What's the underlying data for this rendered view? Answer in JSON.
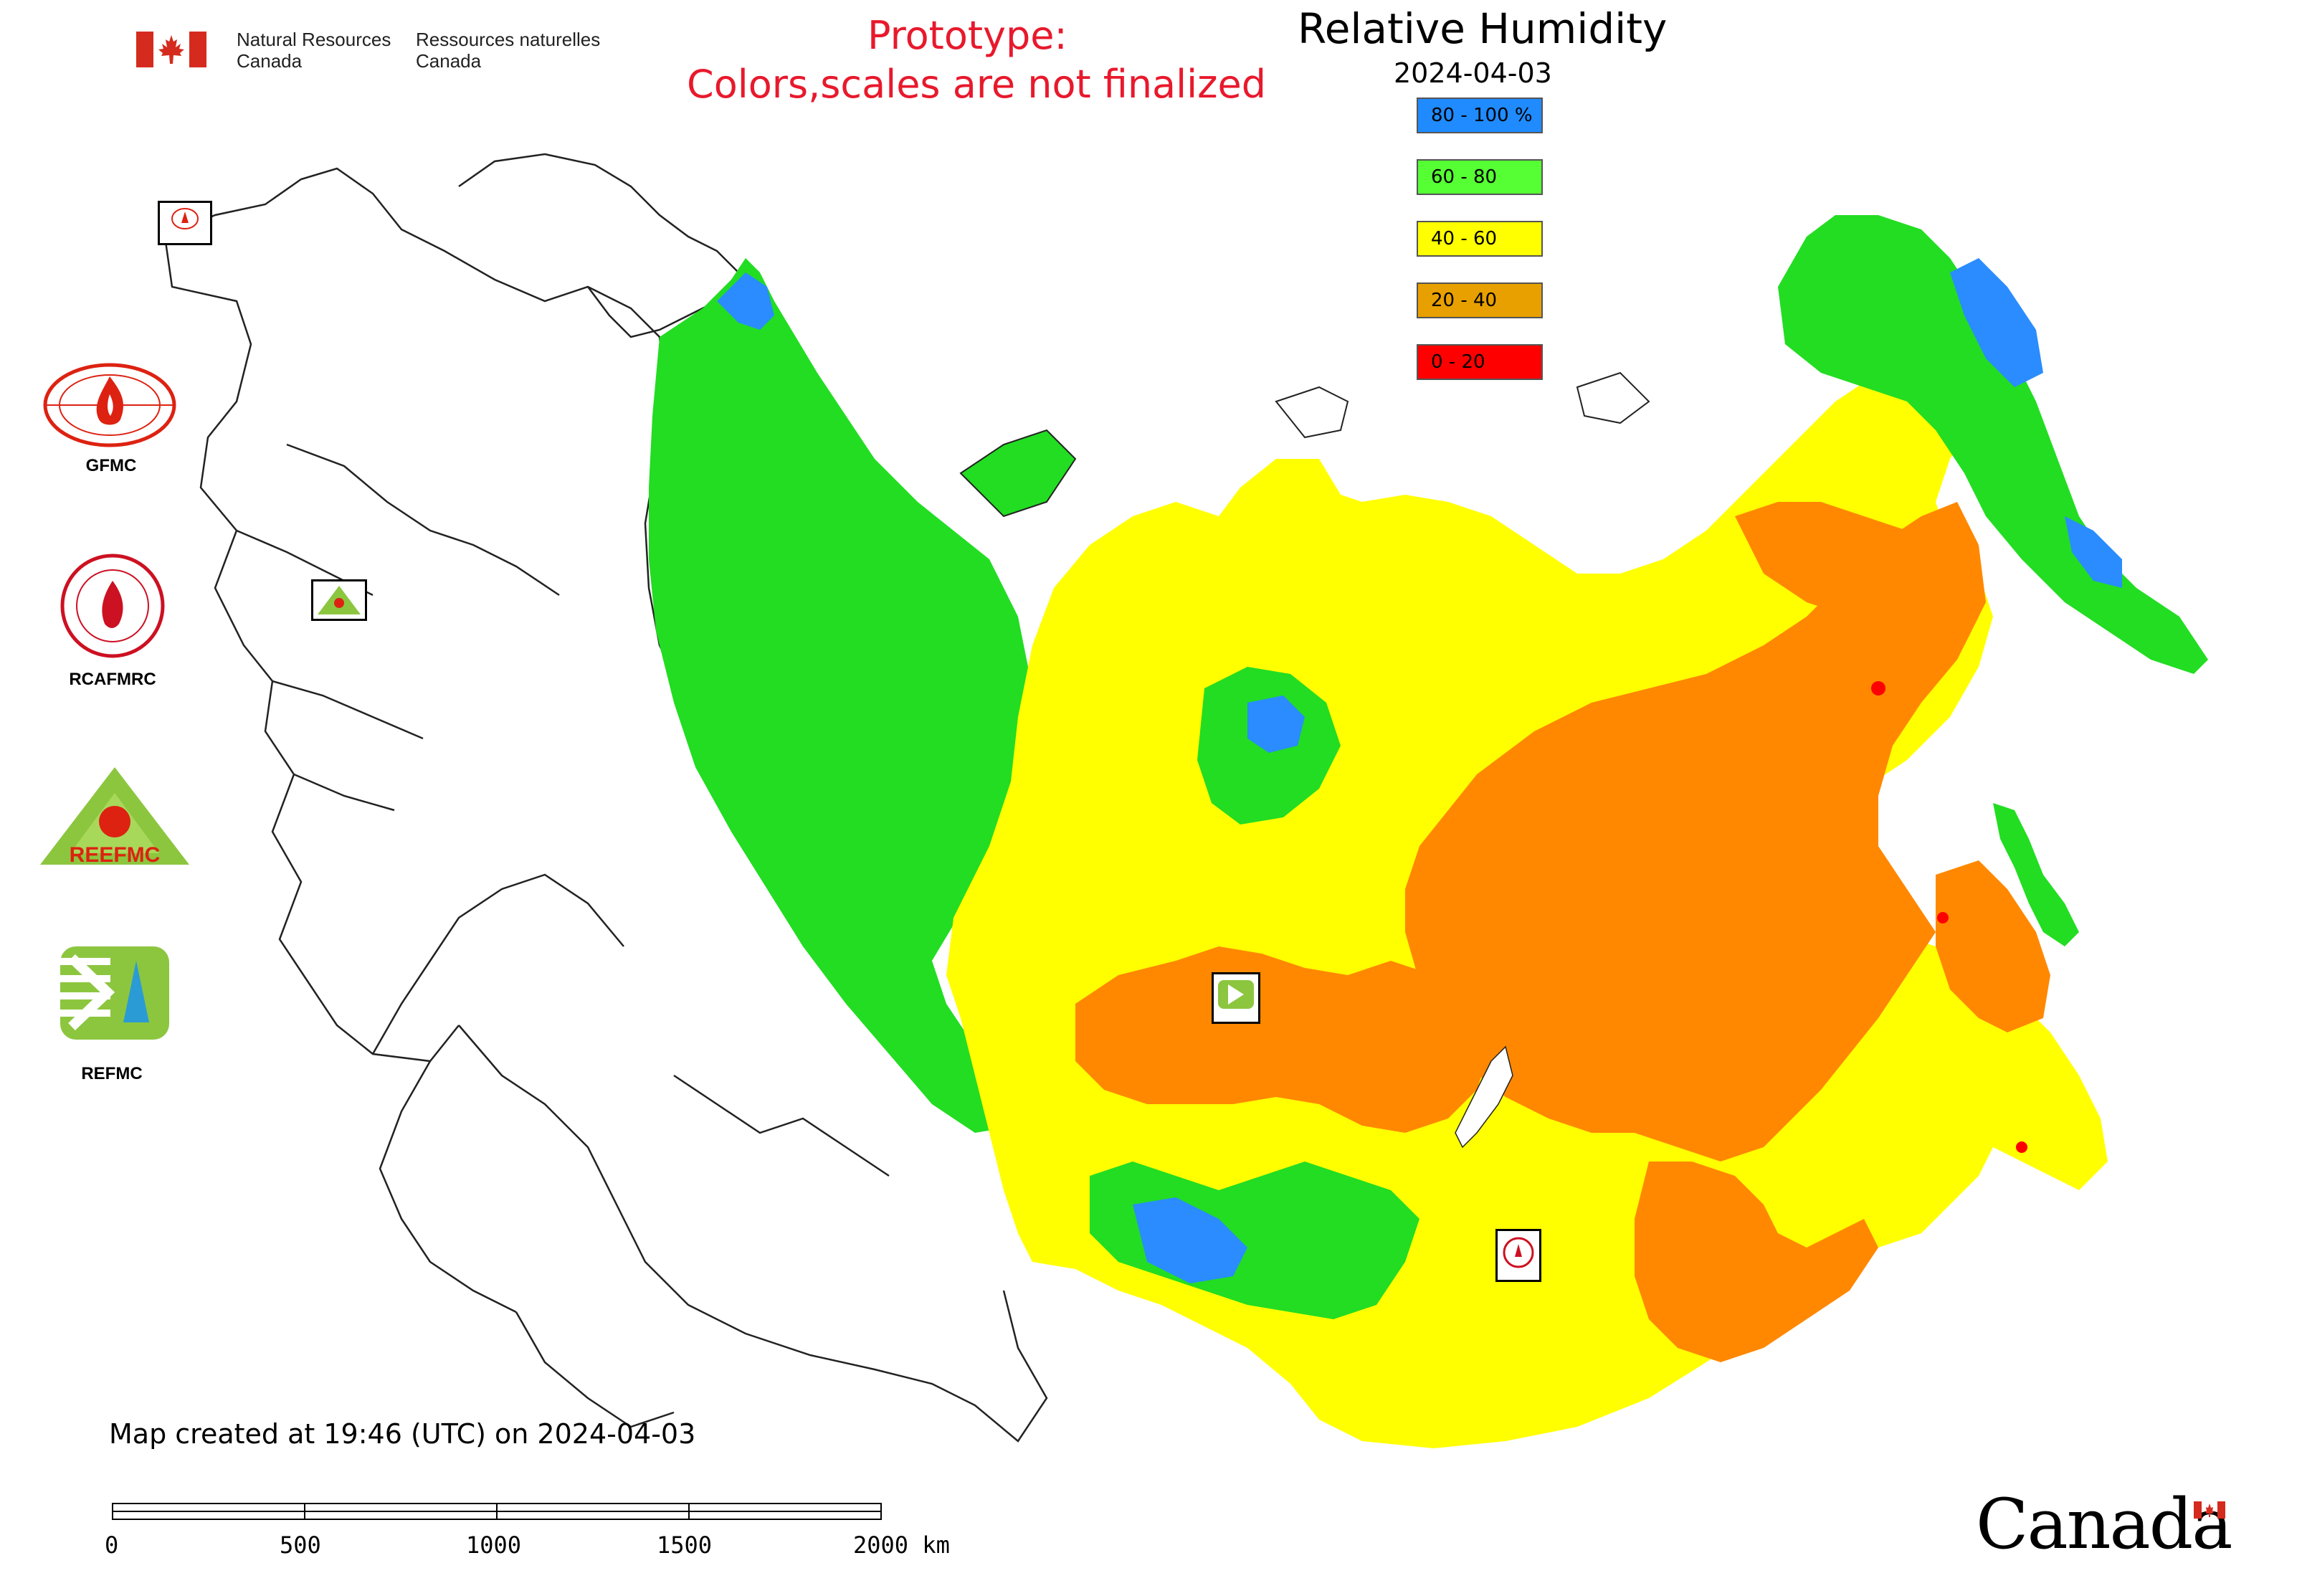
{
  "header": {
    "department_en_line1": "Natural Resources",
    "department_en_line2": "Canada",
    "department_fr_line1": "Ressources naturelles",
    "department_fr_line2": "Canada",
    "prototype_line1": "Prototype:",
    "prototype_line2": "Colors,scales are not finalized"
  },
  "map": {
    "title": "Relative Humidity",
    "date": "2024-04-03",
    "created_text": "Map created at 19:46 (UTC) on 2024-04-03",
    "legend": [
      {
        "label": "80 - 100 %",
        "color": "#1f8bff"
      },
      {
        "label": "60 - 80",
        "color": "#55ff33"
      },
      {
        "label": "40 - 60",
        "color": "#ffff00"
      },
      {
        "label": "20 - 40",
        "color": "#e8a000"
      },
      {
        "label": "0 - 20",
        "color": "#ff0000"
      }
    ],
    "fill_colors": {
      "blue": "#2a8cff",
      "green": "#22dd22",
      "yellow": "#ffff00",
      "orange": "#ff8800",
      "red": "#ff0000"
    }
  },
  "agencies": [
    {
      "label": "GFMC",
      "icon": "gfmc-logo-icon"
    },
    {
      "label": "RCAFMRC",
      "icon": "rcafmrc-logo-icon"
    },
    {
      "label": "",
      "icon": "reefmc-logo-icon",
      "logo_text": "REEFMC"
    },
    {
      "label": "REFMC",
      "icon": "refmc-logo-icon"
    }
  ],
  "map_markers": [
    {
      "label": "GFMC",
      "icon": "gfmc-marker-icon"
    },
    {
      "label": "REEFMC",
      "icon": "reefmc-marker-icon"
    },
    {
      "label": "REFMC",
      "icon": "refmc-marker-icon"
    },
    {
      "label": "RCAFMRC",
      "icon": "rcafmrc-marker-icon"
    }
  ],
  "scale_bar": {
    "ticks": [
      "0",
      "500",
      "1000",
      "1500",
      "2000 km"
    ]
  },
  "footer": {
    "wordmark": "Canada"
  }
}
